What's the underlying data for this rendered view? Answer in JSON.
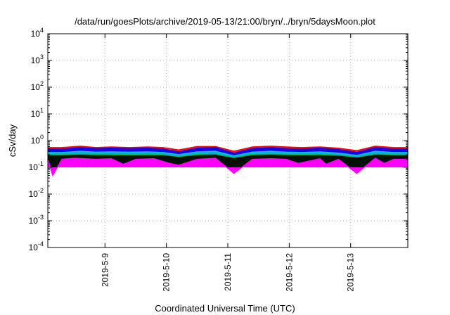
{
  "chart_data": {
    "type": "area",
    "title": "/data/run/goesPlots/archive/2019-05-13/21:00/bryn/../bryn/5daysMoon.plot",
    "xlabel": "Coordinated Universal Time (UTC)",
    "ylabel": "cSv/day",
    "yscale": "log",
    "ylim": [
      0.0001,
      10000
    ],
    "y_ticks": [
      {
        "value": 0.0001,
        "label": "10",
        "exp": "-4"
      },
      {
        "value": 0.001,
        "label": "10",
        "exp": "-3"
      },
      {
        "value": 0.01,
        "label": "10",
        "exp": "-2"
      },
      {
        "value": 0.1,
        "label": "10",
        "exp": "-1"
      },
      {
        "value": 1,
        "label": "10",
        "exp": "0"
      },
      {
        "value": 10,
        "label": "10",
        "exp": "1"
      },
      {
        "value": 100,
        "label": "10",
        "exp": "2"
      },
      {
        "value": 1000,
        "label": "10",
        "exp": "3"
      },
      {
        "value": 10000,
        "label": "10",
        "exp": "4"
      }
    ],
    "x_range_days": [
      8.07,
      13.93
    ],
    "x_ticks": [
      {
        "day": 9,
        "label": "2019-5-9"
      },
      {
        "day": 10,
        "label": "2019-5-10"
      },
      {
        "day": 11,
        "label": "2019-5-11"
      },
      {
        "day": 12,
        "label": "2019-5-12"
      },
      {
        "day": 13,
        "label": "2019-5-13"
      }
    ],
    "grid": true,
    "legend": "none",
    "series": [
      {
        "color": "#ff0000",
        "values": [
          {
            "day": 8.07,
            "y": 0.55
          },
          {
            "day": 8.3,
            "y": 0.55
          },
          {
            "day": 8.6,
            "y": 0.62
          },
          {
            "day": 8.85,
            "y": 0.55
          },
          {
            "day": 9.1,
            "y": 0.58
          },
          {
            "day": 9.4,
            "y": 0.55
          },
          {
            "day": 9.7,
            "y": 0.58
          },
          {
            "day": 9.95,
            "y": 0.55
          },
          {
            "day": 10.2,
            "y": 0.45
          },
          {
            "day": 10.5,
            "y": 0.6
          },
          {
            "day": 10.8,
            "y": 0.6
          },
          {
            "day": 11.1,
            "y": 0.4
          },
          {
            "day": 11.4,
            "y": 0.58
          },
          {
            "day": 11.7,
            "y": 0.62
          },
          {
            "day": 11.95,
            "y": 0.58
          },
          {
            "day": 12.2,
            "y": 0.55
          },
          {
            "day": 12.5,
            "y": 0.58
          },
          {
            "day": 12.8,
            "y": 0.52
          },
          {
            "day": 13.1,
            "y": 0.42
          },
          {
            "day": 13.4,
            "y": 0.62
          },
          {
            "day": 13.7,
            "y": 0.55
          },
          {
            "day": 13.93,
            "y": 0.55
          }
        ]
      },
      {
        "color": "#0000ff",
        "values": [
          {
            "day": 8.07,
            "y": 0.48
          },
          {
            "day": 8.3,
            "y": 0.48
          },
          {
            "day": 8.6,
            "y": 0.55
          },
          {
            "day": 8.85,
            "y": 0.5
          },
          {
            "day": 9.1,
            "y": 0.52
          },
          {
            "day": 9.4,
            "y": 0.5
          },
          {
            "day": 9.7,
            "y": 0.52
          },
          {
            "day": 9.95,
            "y": 0.48
          },
          {
            "day": 10.2,
            "y": 0.38
          },
          {
            "day": 10.5,
            "y": 0.52
          },
          {
            "day": 10.8,
            "y": 0.55
          },
          {
            "day": 11.1,
            "y": 0.34
          },
          {
            "day": 11.4,
            "y": 0.5
          },
          {
            "day": 11.7,
            "y": 0.55
          },
          {
            "day": 11.95,
            "y": 0.5
          },
          {
            "day": 12.2,
            "y": 0.48
          },
          {
            "day": 12.5,
            "y": 0.52
          },
          {
            "day": 12.8,
            "y": 0.46
          },
          {
            "day": 13.1,
            "y": 0.36
          },
          {
            "day": 13.4,
            "y": 0.55
          },
          {
            "day": 13.7,
            "y": 0.48
          },
          {
            "day": 13.93,
            "y": 0.48
          }
        ]
      },
      {
        "color": "#00c8c8",
        "values": [
          {
            "day": 8.07,
            "y": 0.36
          },
          {
            "day": 8.3,
            "y": 0.36
          },
          {
            "day": 8.6,
            "y": 0.4
          },
          {
            "day": 8.85,
            "y": 0.37
          },
          {
            "day": 9.1,
            "y": 0.38
          },
          {
            "day": 9.4,
            "y": 0.37
          },
          {
            "day": 9.7,
            "y": 0.38
          },
          {
            "day": 9.95,
            "y": 0.36
          },
          {
            "day": 10.2,
            "y": 0.3
          },
          {
            "day": 10.5,
            "y": 0.38
          },
          {
            "day": 10.8,
            "y": 0.4
          },
          {
            "day": 11.1,
            "y": 0.27
          },
          {
            "day": 11.4,
            "y": 0.37
          },
          {
            "day": 11.7,
            "y": 0.4
          },
          {
            "day": 11.95,
            "y": 0.37
          },
          {
            "day": 12.2,
            "y": 0.36
          },
          {
            "day": 12.5,
            "y": 0.38
          },
          {
            "day": 12.8,
            "y": 0.34
          },
          {
            "day": 13.1,
            "y": 0.28
          },
          {
            "day": 13.4,
            "y": 0.4
          },
          {
            "day": 13.7,
            "y": 0.36
          },
          {
            "day": 13.93,
            "y": 0.36
          }
        ]
      },
      {
        "color": "#00a000",
        "values": [
          {
            "day": 8.07,
            "y": 0.28
          },
          {
            "day": 8.3,
            "y": 0.28
          },
          {
            "day": 8.6,
            "y": 0.3
          },
          {
            "day": 8.85,
            "y": 0.29
          },
          {
            "day": 9.1,
            "y": 0.29
          },
          {
            "day": 9.4,
            "y": 0.28
          },
          {
            "day": 9.7,
            "y": 0.29
          },
          {
            "day": 9.95,
            "y": 0.28
          },
          {
            "day": 10.2,
            "y": 0.24
          },
          {
            "day": 10.5,
            "y": 0.29
          },
          {
            "day": 10.8,
            "y": 0.3
          },
          {
            "day": 11.1,
            "y": 0.22
          },
          {
            "day": 11.4,
            "y": 0.29
          },
          {
            "day": 11.7,
            "y": 0.3
          },
          {
            "day": 11.95,
            "y": 0.29
          },
          {
            "day": 12.2,
            "y": 0.28
          },
          {
            "day": 12.5,
            "y": 0.29
          },
          {
            "day": 12.8,
            "y": 0.27
          },
          {
            "day": 13.1,
            "y": 0.23
          },
          {
            "day": 13.4,
            "y": 0.3
          },
          {
            "day": 13.7,
            "y": 0.28
          },
          {
            "day": 13.93,
            "y": 0.28
          }
        ]
      },
      {
        "color": "#000000",
        "values": [
          {
            "day": 8.07,
            "y": 0.27
          },
          {
            "day": 8.3,
            "y": 0.27
          },
          {
            "day": 8.6,
            "y": 0.28
          },
          {
            "day": 8.85,
            "y": 0.27
          },
          {
            "day": 9.1,
            "y": 0.27
          },
          {
            "day": 9.4,
            "y": 0.27
          },
          {
            "day": 9.7,
            "y": 0.27
          },
          {
            "day": 9.95,
            "y": 0.27
          },
          {
            "day": 10.2,
            "y": 0.23
          },
          {
            "day": 10.5,
            "y": 0.27
          },
          {
            "day": 10.8,
            "y": 0.28
          },
          {
            "day": 11.1,
            "y": 0.21
          },
          {
            "day": 11.4,
            "y": 0.27
          },
          {
            "day": 11.7,
            "y": 0.28
          },
          {
            "day": 11.95,
            "y": 0.27
          },
          {
            "day": 12.2,
            "y": 0.27
          },
          {
            "day": 12.5,
            "y": 0.27
          },
          {
            "day": 12.8,
            "y": 0.26
          },
          {
            "day": 13.1,
            "y": 0.22
          },
          {
            "day": 13.4,
            "y": 0.28
          },
          {
            "day": 13.7,
            "y": 0.27
          },
          {
            "day": 13.93,
            "y": 0.27
          }
        ]
      },
      {
        "color": "#ff00ff",
        "values": [
          {
            "day": 8.07,
            "y": 0.2
          },
          {
            "day": 8.15,
            "y": 0.05
          },
          {
            "day": 8.3,
            "y": 0.2
          },
          {
            "day": 8.5,
            "y": 0.22
          },
          {
            "day": 8.85,
            "y": 0.2
          },
          {
            "day": 9.1,
            "y": 0.21
          },
          {
            "day": 9.3,
            "y": 0.13
          },
          {
            "day": 9.5,
            "y": 0.2
          },
          {
            "day": 9.8,
            "y": 0.21
          },
          {
            "day": 10.05,
            "y": 0.14
          },
          {
            "day": 10.2,
            "y": 0.12
          },
          {
            "day": 10.5,
            "y": 0.2
          },
          {
            "day": 10.8,
            "y": 0.22
          },
          {
            "day": 11.1,
            "y": 0.06
          },
          {
            "day": 11.4,
            "y": 0.2
          },
          {
            "day": 11.7,
            "y": 0.21
          },
          {
            "day": 11.95,
            "y": 0.2
          },
          {
            "day": 12.15,
            "y": 0.14
          },
          {
            "day": 12.5,
            "y": 0.21
          },
          {
            "day": 12.6,
            "y": 0.13
          },
          {
            "day": 12.8,
            "y": 0.2
          },
          {
            "day": 13.1,
            "y": 0.06
          },
          {
            "day": 13.4,
            "y": 0.22
          },
          {
            "day": 13.55,
            "y": 0.14
          },
          {
            "day": 13.7,
            "y": 0.2
          },
          {
            "day": 13.93,
            "y": 0.2
          }
        ]
      }
    ]
  }
}
